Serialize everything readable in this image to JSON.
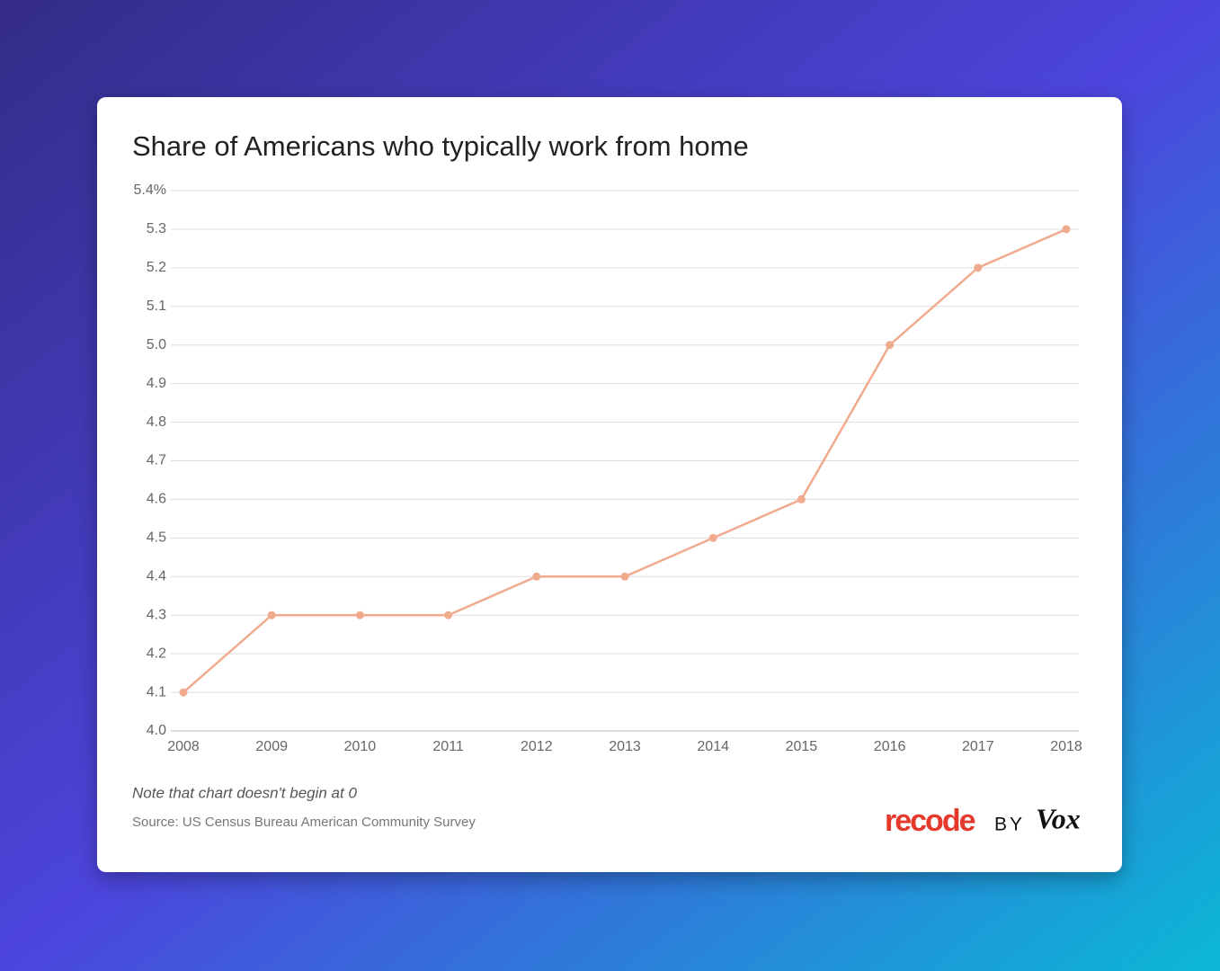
{
  "chart_data": {
    "type": "line",
    "title": "Share of Americans who typically work from home",
    "categories": [
      "2008",
      "2009",
      "2010",
      "2011",
      "2012",
      "2013",
      "2014",
      "2015",
      "2016",
      "2017",
      "2018"
    ],
    "series": [
      {
        "name": "Share of Americans who typically work from home",
        "color": "#f0ab8f",
        "values": [
          4.1,
          4.3,
          4.3,
          4.3,
          4.4,
          4.4,
          4.5,
          4.6,
          5.0,
          5.2,
          5.3
        ]
      }
    ],
    "ylim": [
      4,
      5.4
    ],
    "yticks": [
      {
        "value": 4,
        "label": "4.0"
      },
      4.1,
      4.2,
      4.3,
      4.4,
      4.5,
      4.6,
      4.7,
      4.8,
      4.9,
      {
        "value": 5,
        "label": "5.0"
      },
      5.1,
      5.2,
      5.3,
      {
        "value": 5.4,
        "label": "5.4%"
      }
    ],
    "grid": true,
    "note": "Note that chart doesn't begin at 0",
    "source": "Source: US Census Bureau American Community Survey"
  },
  "brand": {
    "name": "recode",
    "by": "BY",
    "partner": "Vox"
  }
}
